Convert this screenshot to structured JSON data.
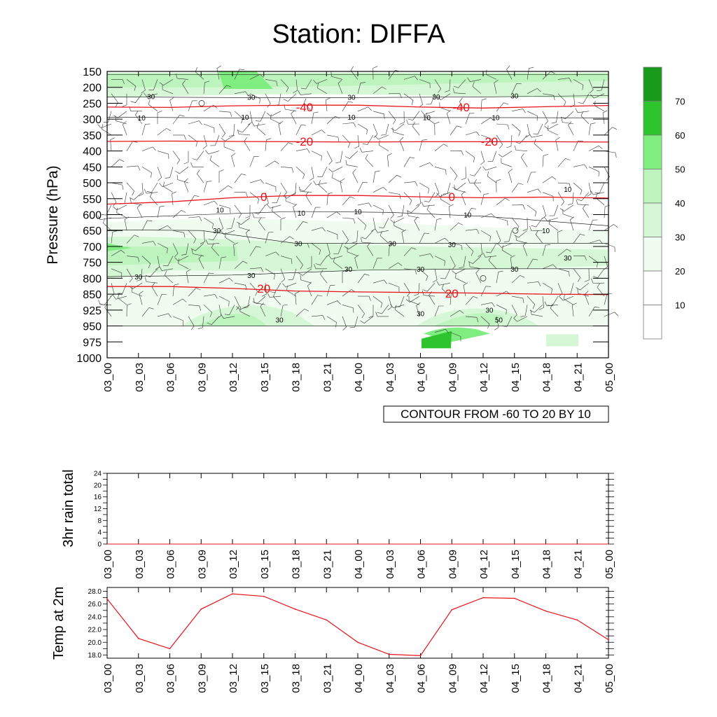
{
  "title": "Station: DIFFA",
  "colors": {
    "fill_levels": [
      "#ffffff",
      "#ffffff",
      "#f0fcf0",
      "#d6f7d6",
      "#bdf3bd",
      "#7fed7f",
      "#2ec42e",
      "#1a9a1a"
    ],
    "temp_contour": "#e8141b",
    "temp_line": "#e8141b"
  },
  "chart_data": [
    {
      "id": "upper_air",
      "type": "contour",
      "ylabel": "Pressure (hPa)",
      "yticks": [
        "150",
        "200",
        "250",
        "300",
        "350",
        "400",
        "450",
        "500",
        "550",
        "600",
        "650",
        "700",
        "750",
        "800",
        "850",
        "925",
        "950",
        "975",
        "1000"
      ],
      "xticks": [
        "03_00",
        "03_03",
        "03_06",
        "03_09",
        "03_12",
        "03_15",
        "03_18",
        "03_21",
        "04_00",
        "04_03",
        "04_06",
        "04_09",
        "04_12",
        "04_15",
        "04_18",
        "04_21",
        "05_00"
      ],
      "info_label": "CONTOUR FROM -60 TO 20 BY 10",
      "temperature_contours": [
        {
          "label": "-40",
          "levels": [
            262,
            263,
            258,
            256,
            256,
            262,
            265,
            261,
            257
          ]
        },
        {
          "label": "-20",
          "levels": [
            370,
            369,
            370,
            371,
            372,
            371,
            371,
            371,
            372
          ]
        },
        {
          "label": "0",
          "levels": [
            567,
            560,
            547,
            540,
            540,
            544,
            547,
            545,
            548
          ]
        },
        {
          "label": "20",
          "levels": [
            826,
            826,
            832,
            840,
            843,
            845,
            847,
            850,
            852
          ]
        }
      ],
      "temp_contour_labels": [
        {
          "text": "-40",
          "col": 6.3,
          "level": 262
        },
        {
          "text": "-40",
          "col": 11.3,
          "level": 262
        },
        {
          "text": "-20",
          "col": 6.3,
          "level": 370
        },
        {
          "text": "-20",
          "col": 12.2,
          "level": 370
        },
        {
          "text": "0",
          "col": 5.0,
          "level": 544
        },
        {
          "text": "0",
          "col": 11.0,
          "level": 544
        },
        {
          "text": "20",
          "col": 5.0,
          "level": 832
        },
        {
          "text": "20",
          "col": 11.0,
          "level": 848
        }
      ],
      "wind_contour_labels": [
        {
          "text": "30",
          "col": 1.4,
          "level": 228
        },
        {
          "text": "30",
          "col": 4.6,
          "level": 230
        },
        {
          "text": "30",
          "col": 7.8,
          "level": 230
        },
        {
          "text": "30",
          "col": 10.5,
          "level": 229
        },
        {
          "text": "30",
          "col": 13.0,
          "level": 226
        },
        {
          "text": "10",
          "col": 1.1,
          "level": 295
        },
        {
          "text": "10",
          "col": 4.4,
          "level": 293
        },
        {
          "text": "10",
          "col": 7.8,
          "level": 293
        },
        {
          "text": "10",
          "col": 10.2,
          "level": 294
        },
        {
          "text": "10",
          "col": 12.4,
          "level": 294
        },
        {
          "text": "10",
          "col": 3.6,
          "level": 585
        },
        {
          "text": "10",
          "col": 6.2,
          "level": 595
        },
        {
          "text": "10",
          "col": 8.0,
          "level": 590
        },
        {
          "text": "10",
          "col": 11.5,
          "level": 600
        },
        {
          "text": "10",
          "col": 14.0,
          "level": 650
        },
        {
          "text": "10",
          "col": 14.7,
          "level": 520
        },
        {
          "text": "30",
          "col": 3.5,
          "level": 650
        },
        {
          "text": "30",
          "col": 6.1,
          "level": 690
        },
        {
          "text": "30",
          "col": 9.1,
          "level": 690
        },
        {
          "text": "30",
          "col": 11.0,
          "level": 693
        },
        {
          "text": "30",
          "col": 14.7,
          "level": 735
        },
        {
          "text": "30",
          "col": 1.0,
          "level": 795
        },
        {
          "text": "30",
          "col": 4.6,
          "level": 790
        },
        {
          "text": "30",
          "col": 7.7,
          "level": 770
        },
        {
          "text": "30",
          "col": 10.0,
          "level": 770
        },
        {
          "text": "30",
          "col": 13.0,
          "level": 770
        },
        {
          "text": "30",
          "col": 5.5,
          "level": 940
        },
        {
          "text": "30",
          "col": 10.0,
          "level": 930
        },
        {
          "text": "30",
          "col": 12.2,
          "level": 924
        },
        {
          "text": "50",
          "col": 12.5,
          "level": 940
        }
      ]
    },
    {
      "id": "rain",
      "type": "line",
      "ylabel": "3hr rain total",
      "ylim": [
        0,
        24
      ],
      "yticks": [
        "0",
        "4",
        "8",
        "12",
        "16",
        "20",
        "24"
      ],
      "xticks": [
        "03_00",
        "03_03",
        "03_06",
        "03_09",
        "03_12",
        "03_15",
        "03_18",
        "03_21",
        "04_00",
        "04_03",
        "04_06",
        "04_09",
        "04_12",
        "04_15",
        "04_18",
        "04_21",
        "05_00"
      ],
      "values": [
        0,
        0,
        0,
        0,
        0,
        0,
        0,
        0,
        0,
        0,
        0,
        0,
        0,
        0,
        0,
        0,
        0
      ]
    },
    {
      "id": "temp2m",
      "type": "line",
      "ylabel": "Temp at 2m",
      "ylim": [
        17.5,
        28.6
      ],
      "yticks": [
        "18.0",
        "20.0",
        "22.0",
        "24.0",
        "26.0",
        "28.0"
      ],
      "xticks": [
        "03_00",
        "03_03",
        "03_06",
        "03_09",
        "03_12",
        "03_15",
        "03_18",
        "03_21",
        "04_00",
        "04_03",
        "04_06",
        "04_09",
        "04_12",
        "04_15",
        "04_18",
        "04_21",
        "05_00"
      ],
      "values": [
        26.8,
        20.6,
        19.0,
        25.2,
        27.6,
        27.2,
        25.2,
        23.5,
        20.0,
        18.1,
        17.9,
        25.1,
        27.0,
        26.9,
        24.9,
        23.5,
        20.4
      ]
    }
  ]
}
